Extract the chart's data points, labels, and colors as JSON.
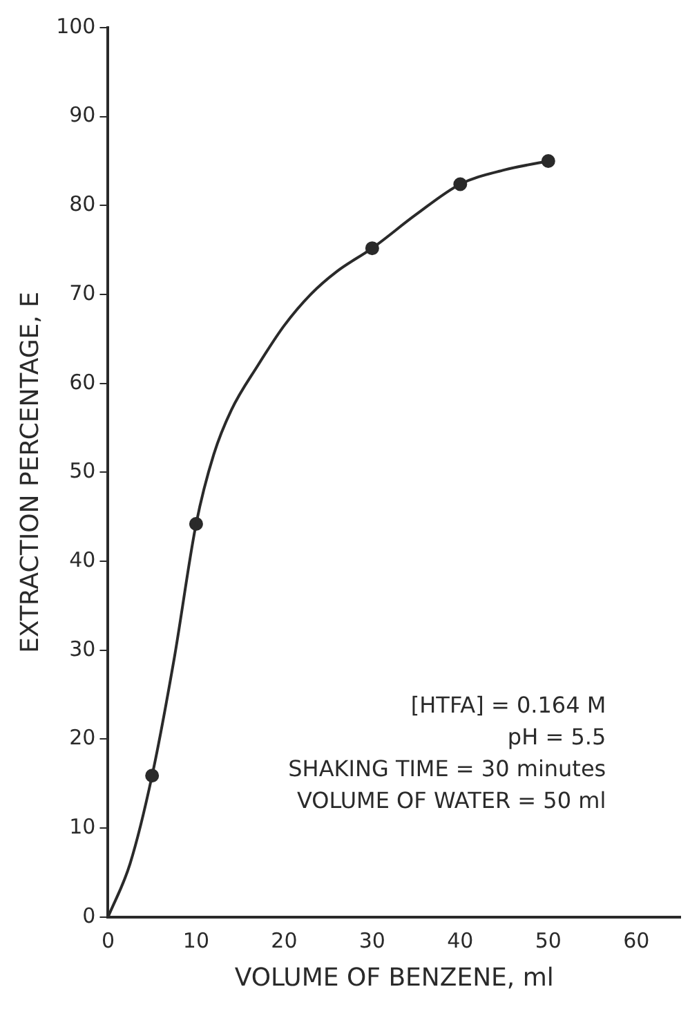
{
  "chart_data": {
    "type": "line",
    "xlabel": "VOLUME OF BENZENE, ml",
    "ylabel": "EXTRACTION PERCENTAGE, E",
    "xlim": [
      0,
      65
    ],
    "xticks": [
      0,
      10,
      20,
      30,
      40,
      50,
      60
    ],
    "ylim": [
      0,
      100
    ],
    "yticks": [
      0,
      10,
      20,
      30,
      40,
      50,
      60,
      70,
      80,
      90,
      100
    ],
    "grid": false,
    "legend": false,
    "series": [
      {
        "marker": "none",
        "line_style": "solid",
        "color": "#2a2a2a",
        "x": [
          0,
          2.5,
          5,
          7.5,
          10,
          12,
          14,
          17,
          20,
          23,
          26,
          30,
          35,
          40,
          45,
          50
        ],
        "values": [
          0,
          6,
          15.9,
          29,
          44.2,
          52,
          57,
          62,
          66.5,
          70,
          72.6,
          75.2,
          79,
          82.4,
          84,
          85
        ]
      },
      {
        "type": "scatter",
        "marker": "circle",
        "color": "#2a2a2a",
        "x": [
          5,
          10,
          30,
          40,
          50
        ],
        "values": [
          15.9,
          44.2,
          75.2,
          82.4,
          85
        ]
      }
    ],
    "annotations": [
      "[HTFA] = 0.164 M",
      "pH = 5.5",
      "SHAKING TIME = 30 minutes",
      "VOLUME OF WATER = 50 ml"
    ]
  }
}
